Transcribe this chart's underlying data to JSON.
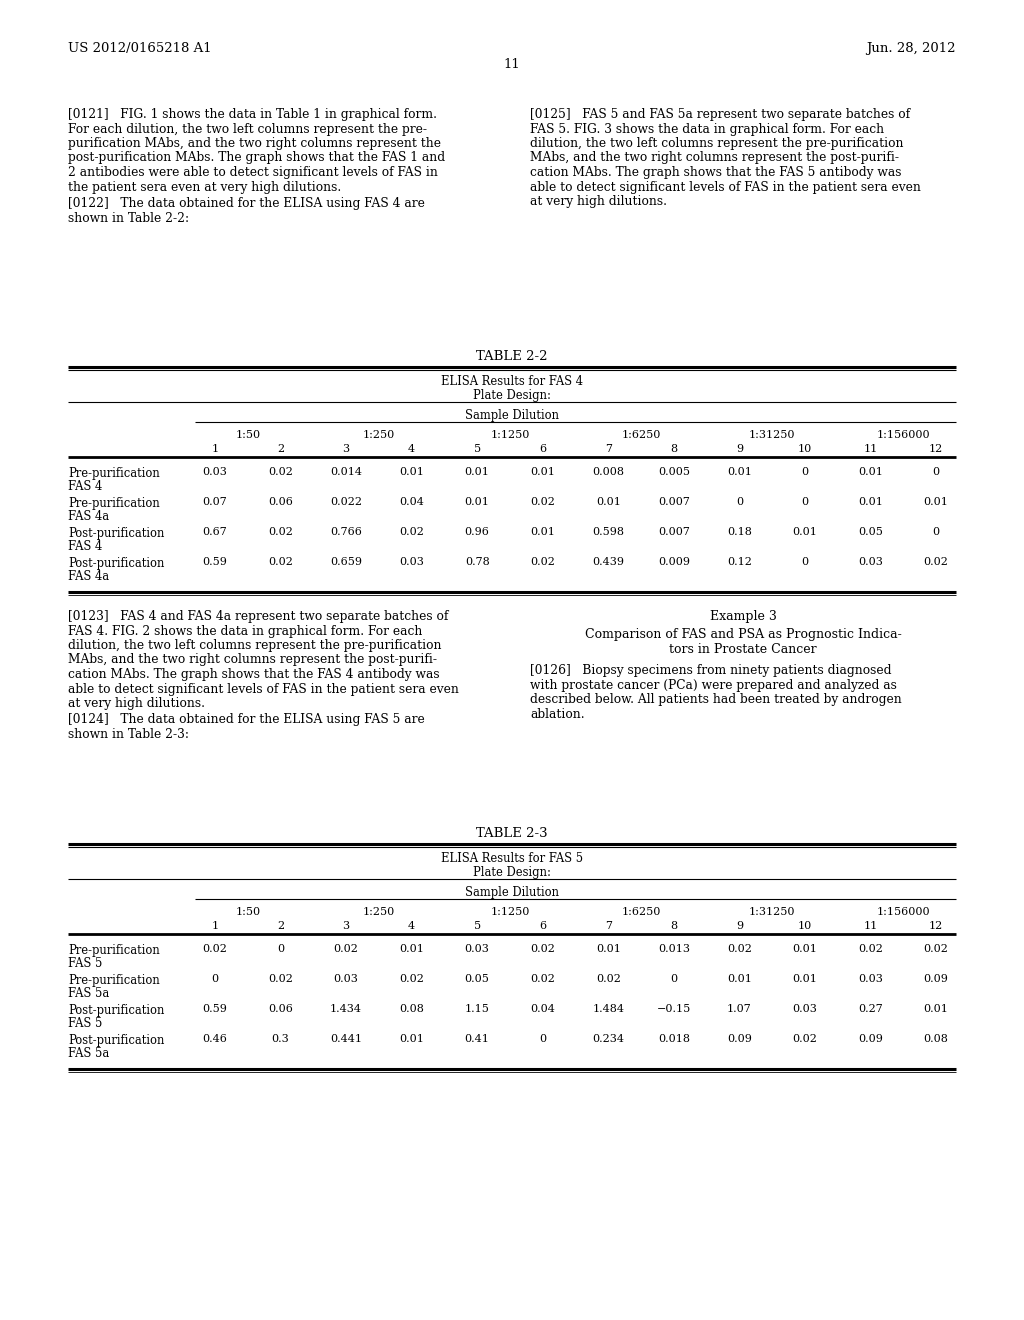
{
  "page_header_left": "US 2012/0165218 A1",
  "page_header_right": "Jun. 28, 2012",
  "page_number": "11",
  "background_color": "#ffffff",
  "para_121_lines": [
    "[0121]   FIG. 1 shows the data in Table 1 in graphical form.",
    "For each dilution, the two left columns represent the pre-",
    "purification MAbs, and the two right columns represent the",
    "post-purification MAbs. The graph shows that the FAS 1 and",
    "2 antibodies were able to detect significant levels of FAS in",
    "the patient sera even at very high dilutions."
  ],
  "para_122_lines": [
    "[0122]   The data obtained for the ELISA using FAS 4 are",
    "shown in Table 2-2:"
  ],
  "para_125_lines": [
    "[0125]   FAS 5 and FAS 5a represent two separate batches of",
    "FAS 5. FIG. 3 shows the data in graphical form. For each",
    "dilution, the two left columns represent the pre-purification",
    "MAbs, and the two right columns represent the post-purifi-",
    "cation MAbs. The graph shows that the FAS 5 antibody was",
    "able to detect significant levels of FAS in the patient sera even",
    "at very high dilutions."
  ],
  "table22_title": "TABLE 2-2",
  "table22_subtitle1": "ELISA Results for FAS 4",
  "table22_subtitle2": "Plate Design:",
  "table22_sample_dilution": "Sample Dilution",
  "table22_dilutions": [
    "1:50",
    "1:250",
    "1:1250",
    "1:6250",
    "1:31250",
    "1:156000"
  ],
  "table22_col_nums": [
    "1",
    "2",
    "3",
    "4",
    "5",
    "6",
    "7",
    "8",
    "9",
    "10",
    "11",
    "12"
  ],
  "table22_rows": [
    {
      "label1": "Pre-purification",
      "label2": "FAS 4",
      "values": [
        "0.03",
        "0.02",
        "0.014",
        "0.01",
        "0.01",
        "0.01",
        "0.008",
        "0.005",
        "0.01",
        "0",
        "0.01",
        "0"
      ]
    },
    {
      "label1": "Pre-purification",
      "label2": "FAS 4a",
      "values": [
        "0.07",
        "0.06",
        "0.022",
        "0.04",
        "0.01",
        "0.02",
        "0.01",
        "0.007",
        "0",
        "0",
        "0.01",
        "0.01"
      ]
    },
    {
      "label1": "Post-purification",
      "label2": "FAS 4",
      "values": [
        "0.67",
        "0.02",
        "0.766",
        "0.02",
        "0.96",
        "0.01",
        "0.598",
        "0.007",
        "0.18",
        "0.01",
        "0.05",
        "0"
      ]
    },
    {
      "label1": "Post-purification",
      "label2": "FAS 4a",
      "values": [
        "0.59",
        "0.02",
        "0.659",
        "0.03",
        "0.78",
        "0.02",
        "0.439",
        "0.009",
        "0.12",
        "0",
        "0.03",
        "0.02"
      ]
    }
  ],
  "para_123_lines": [
    "[0123]   FAS 4 and FAS 4a represent two separate batches of",
    "FAS 4. FIG. 2 shows the data in graphical form. For each",
    "dilution, the two left columns represent the pre-purification",
    "MAbs, and the two right columns represent the post-purifi-",
    "cation MAbs. The graph shows that the FAS 4 antibody was",
    "able to detect significant levels of FAS in the patient sera even",
    "at very high dilutions."
  ],
  "para_124_lines": [
    "[0124]   The data obtained for the ELISA using FAS 5 are",
    "shown in Table 2-3:"
  ],
  "example3_title": "Example 3",
  "example3_subtitle_lines": [
    "Comparison of FAS and PSA as Prognostic Indica-",
    "tors in Prostate Cancer"
  ],
  "para_126_lines": [
    "[0126]   Biopsy specimens from ninety patients diagnosed",
    "with prostate cancer (PCa) were prepared and analyzed as",
    "described below. All patients had been treated by androgen",
    "ablation."
  ],
  "table23_title": "TABLE 2-3",
  "table23_subtitle1": "ELISA Results for FAS 5",
  "table23_subtitle2": "Plate Design:",
  "table23_sample_dilution": "Sample Dilution",
  "table23_dilutions": [
    "1:50",
    "1:250",
    "1:1250",
    "1:6250",
    "1:31250",
    "1:156000"
  ],
  "table23_col_nums": [
    "1",
    "2",
    "3",
    "4",
    "5",
    "6",
    "7",
    "8",
    "9",
    "10",
    "11",
    "12"
  ],
  "table23_rows": [
    {
      "label1": "Pre-purification",
      "label2": "FAS 5",
      "values": [
        "0.02",
        "0",
        "0.02",
        "0.01",
        "0.03",
        "0.02",
        "0.01",
        "0.013",
        "0.02",
        "0.01",
        "0.02",
        "0.02"
      ]
    },
    {
      "label1": "Pre-purification",
      "label2": "FAS 5a",
      "values": [
        "0",
        "0.02",
        "0.03",
        "0.02",
        "0.05",
        "0.02",
        "0.02",
        "0",
        "0.01",
        "0.01",
        "0.03",
        "0.09"
      ]
    },
    {
      "label1": "Post-purification",
      "label2": "FAS 5",
      "values": [
        "0.59",
        "0.06",
        "1.434",
        "0.08",
        "1.15",
        "0.04",
        "1.484",
        "−0.15",
        "1.07",
        "0.03",
        "0.27",
        "0.01"
      ]
    },
    {
      "label1": "Post-purification",
      "label2": "FAS 5a",
      "values": [
        "0.46",
        "0.3",
        "0.441",
        "0.01",
        "0.41",
        "0",
        "0.234",
        "0.018",
        "0.09",
        "0.02",
        "0.09",
        "0.08"
      ]
    }
  ]
}
